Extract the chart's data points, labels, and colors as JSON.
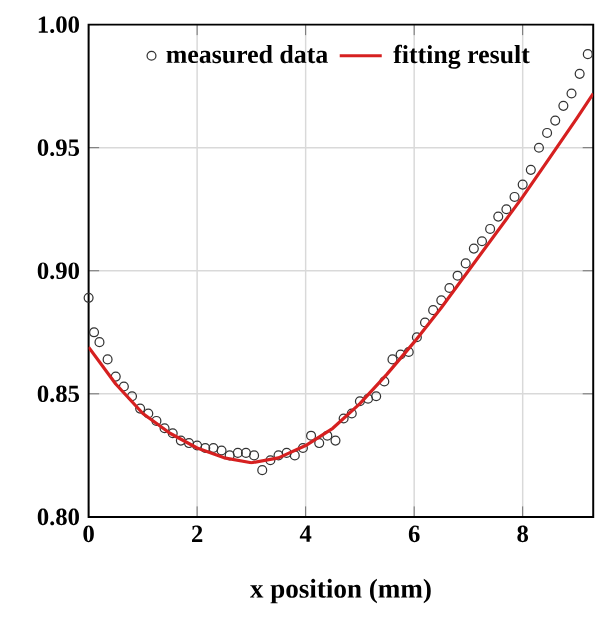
{
  "chart_data": {
    "type": "scatter",
    "xlabel": "x position (mm)",
    "xlim": [
      0,
      9.3
    ],
    "xticks": [
      0,
      2,
      4,
      6,
      8
    ],
    "ylim": [
      0.8,
      1.0
    ],
    "yticks": [
      {
        "value": 0.8,
        "label": "0.80"
      },
      {
        "value": 0.85,
        "label": "0.85"
      },
      {
        "value": 0.9,
        "label": "0.90"
      },
      {
        "value": 0.95,
        "label": "0.95"
      },
      {
        "value": 1.0,
        "label": "1.00"
      }
    ],
    "grid": true,
    "legend": "top",
    "series": [
      {
        "name": "measured data",
        "marker": "circle",
        "color": "#333333",
        "x": [
          0,
          0.1,
          0.2,
          0.35,
          0.5,
          0.65,
          0.8,
          0.95,
          1.1,
          1.25,
          1.4,
          1.55,
          1.7,
          1.85,
          2.0,
          2.15,
          2.3,
          2.45,
          2.6,
          2.75,
          2.9,
          3.05,
          3.2,
          3.35,
          3.5,
          3.65,
          3.8,
          3.95,
          4.1,
          4.25,
          4.4,
          4.55,
          4.7,
          4.85,
          5.0,
          5.15,
          5.3,
          5.45,
          5.6,
          5.75,
          5.9,
          6.05,
          6.2,
          6.35,
          6.5,
          6.65,
          6.8,
          6.95,
          7.1,
          7.25,
          7.4,
          7.55,
          7.7,
          7.85,
          8.0,
          8.15,
          8.3,
          8.45,
          8.6,
          8.75,
          8.9,
          9.05,
          9.2
        ],
        "values": [
          0.889,
          0.875,
          0.871,
          0.864,
          0.857,
          0.853,
          0.849,
          0.844,
          0.842,
          0.839,
          0.836,
          0.834,
          0.831,
          0.83,
          0.829,
          0.828,
          0.828,
          0.827,
          0.825,
          0.826,
          0.826,
          0.825,
          0.819,
          0.823,
          0.825,
          0.826,
          0.825,
          0.828,
          0.833,
          0.83,
          0.833,
          0.831,
          0.84,
          0.842,
          0.847,
          0.848,
          0.849,
          0.855,
          0.864,
          0.866,
          0.867,
          0.873,
          0.879,
          0.884,
          0.888,
          0.893,
          0.898,
          0.903,
          0.909,
          0.912,
          0.917,
          0.922,
          0.925,
          0.93,
          0.935,
          0.941,
          0.95,
          0.956,
          0.961,
          0.967,
          0.972,
          0.98,
          0.988
        ]
      },
      {
        "name": "fitting result",
        "type": "line",
        "line_style": "solid",
        "color": "#d62020",
        "x": [
          0,
          0.5,
          1,
          1.5,
          2,
          2.5,
          3,
          3.5,
          4,
          4.5,
          5,
          5.5,
          6,
          6.5,
          7,
          7.5,
          8,
          8.5,
          9,
          9.3
        ],
        "values": [
          0.869,
          0.854,
          0.842,
          0.834,
          0.828,
          0.824,
          0.822,
          0.824,
          0.829,
          0.836,
          0.846,
          0.858,
          0.871,
          0.885,
          0.9,
          0.915,
          0.93,
          0.946,
          0.962,
          0.972
        ]
      }
    ]
  }
}
